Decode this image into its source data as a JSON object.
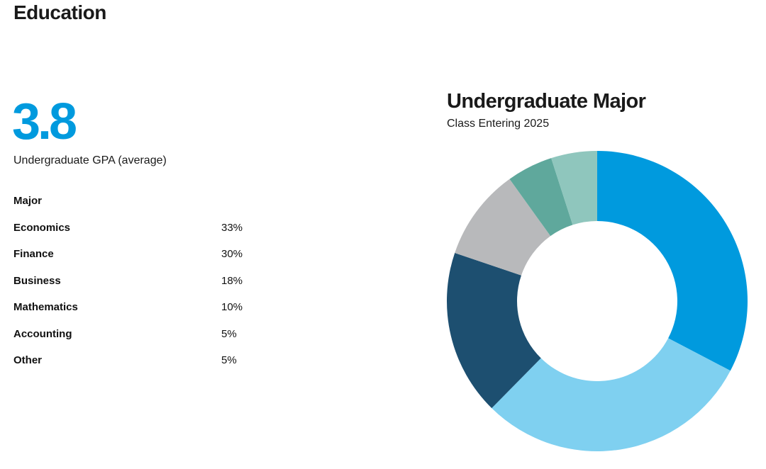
{
  "page": {
    "section_title": "Education",
    "gpa": {
      "value": "3.8",
      "label": "Undergraduate GPA (average)",
      "color": "#009ADE"
    },
    "major_table": {
      "header": "Major",
      "rows": [
        {
          "name": "Economics",
          "percent": "33%"
        },
        {
          "name": "Finance",
          "percent": "30%"
        },
        {
          "name": "Business",
          "percent": "18%"
        },
        {
          "name": "Mathematics",
          "percent": "10%"
        },
        {
          "name": "Accounting",
          "percent": "5%"
        },
        {
          "name": "Other",
          "percent": "5%"
        }
      ]
    }
  },
  "chart_data": {
    "type": "pie",
    "style": "donut",
    "title": "Undergraduate Major",
    "subtitle": "Class Entering 2025",
    "categories": [
      "Economics",
      "Finance",
      "Business",
      "Mathematics",
      "Accounting",
      "Other"
    ],
    "values": [
      33,
      30,
      18,
      10,
      5,
      5
    ],
    "colors": [
      "#009ADE",
      "#7FD0F0",
      "#1D4F70",
      "#B8B9BB",
      "#5FA89C",
      "#8FC6BD"
    ],
    "legend": "none",
    "start": "top, clockwise"
  }
}
